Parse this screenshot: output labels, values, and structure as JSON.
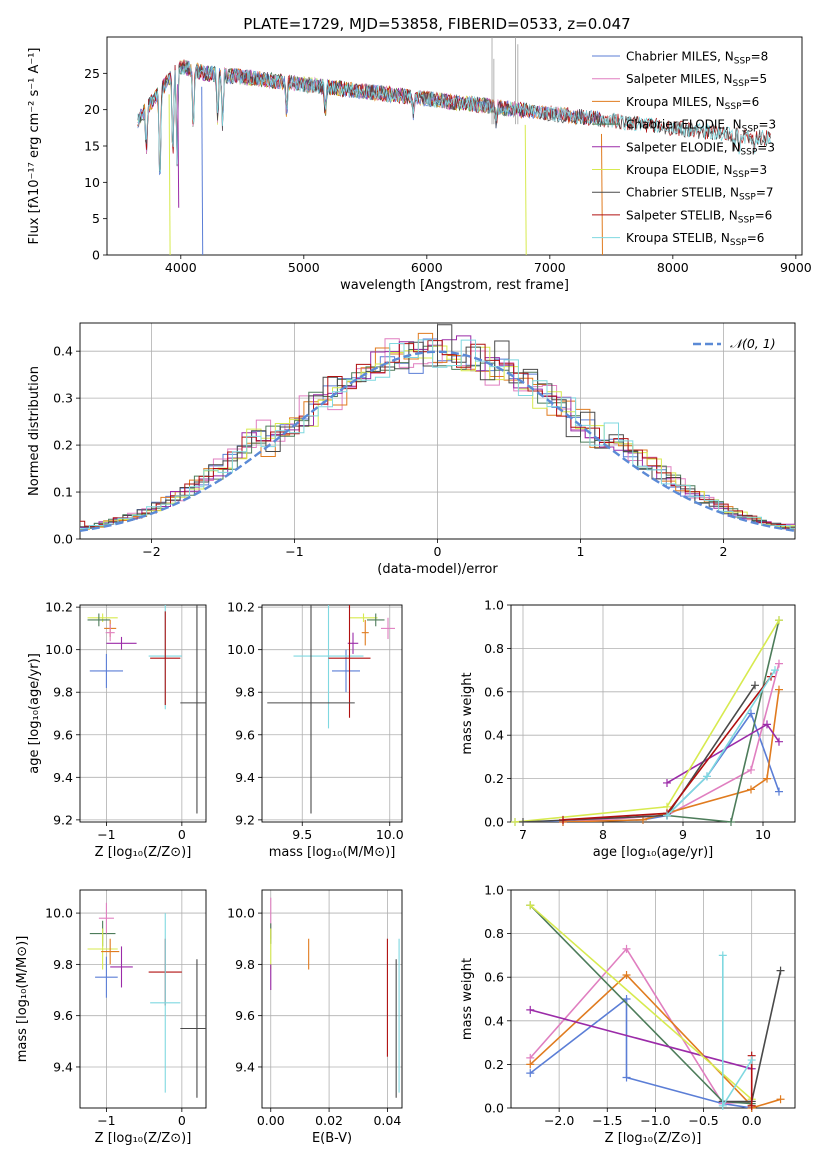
{
  "title": "PLATE=1729, MJD=53858, FIBERID=0533, z=0.047",
  "colors": {
    "Chabrier MILES": "#5b7ed6",
    "Salpeter MILES": "#e07fc0",
    "Kroupa MILES": "#e07b1f",
    "Chabrier ELODIE": "#4d7c5a",
    "Salpeter ELODIE": "#9b2ba8",
    "Kroupa ELODIE": "#d7ea4f",
    "Chabrier STELIB": "#4a4a4a",
    "Salpeter STELIB": "#b01010",
    "Kroupa STELIB": "#7fd8e0",
    "gauss": "#5b8ad6"
  },
  "chart_data": [
    {
      "type": "line",
      "ylabel": "Flux [fλ10⁻¹⁷ erg cm⁻² s⁻¹ A⁻¹]",
      "xlabel": "wavelength [Angstrom, rest frame]",
      "xlim": [
        3400,
        9050
      ],
      "ylim": [
        0,
        30
      ],
      "xticks": [
        4000,
        5000,
        6000,
        7000,
        8000,
        9000
      ],
      "yticks": [
        0,
        5,
        10,
        15,
        20,
        25
      ],
      "grid": false,
      "legend_position": "top-right",
      "legend": [
        {
          "model": "Chabrier MILES",
          "label": "Chabrier MILES, N",
          "sub": "SSP",
          "val": "=8"
        },
        {
          "model": "Salpeter MILES",
          "label": "Salpeter MILES, N",
          "sub": "SSP",
          "val": "=5"
        },
        {
          "model": "Kroupa MILES",
          "label": "Kroupa MILES, N",
          "sub": "SSP",
          "val": "=6"
        },
        {
          "model": "Chabrier ELODIE",
          "label": "Chabrier ELODIE, N",
          "sub": "SSP",
          "val": "=3"
        },
        {
          "model": "Salpeter ELODIE",
          "label": "Salpeter ELODIE, N",
          "sub": "SSP",
          "val": "=3"
        },
        {
          "model": "Kroupa ELODIE",
          "label": "Kroupa ELODIE, N",
          "sub": "SSP",
          "val": "=3"
        },
        {
          "model": "Chabrier STELIB",
          "label": "Chabrier STELIB, N",
          "sub": "SSP",
          "val": "=7"
        },
        {
          "model": "Salpeter STELIB",
          "label": "Salpeter STELIB, N",
          "sub": "SSP",
          "val": "=6"
        },
        {
          "model": "Kroupa STELIB",
          "label": "Kroupa STELIB, N",
          "sub": "SSP",
          "val": "=6"
        }
      ],
      "continuum": {
        "x": [
          3650,
          3800,
          4000,
          4200,
          4500,
          5000,
          5500,
          6000,
          6500,
          7000,
          7500,
          8000,
          8500,
          8800
        ],
        "y": [
          18.5,
          22,
          26,
          25,
          24.5,
          23.5,
          22.5,
          21.5,
          20.5,
          19.5,
          18.5,
          17.5,
          16.5,
          16
        ]
      },
      "absorption": [
        [
          3720,
          14
        ],
        [
          3830,
          8
        ],
        [
          3935,
          12
        ],
        [
          3970,
          13
        ],
        [
          4102,
          16
        ],
        [
          4300,
          18
        ],
        [
          4340,
          17
        ],
        [
          4861,
          19
        ],
        [
          5175,
          19
        ],
        [
          5890,
          19.5
        ],
        [
          6563,
          18
        ],
        [
          8500,
          15
        ],
        [
          8542,
          14
        ],
        [
          8662,
          13.5
        ]
      ],
      "dips": [
        {
          "model": "Kroupa ELODIE",
          "x": 3905,
          "to": 0
        },
        {
          "model": "Salpeter ELODIE",
          "x": 3975,
          "to": 6.5
        },
        {
          "model": "Chabrier MILES",
          "x": 4170,
          "to": 0
        },
        {
          "model": "Kroupa ELODIE",
          "x": 6800,
          "to": 0
        },
        {
          "model": "Kroupa MILES",
          "x": 7420,
          "to": 0
        }
      ],
      "spikes": [
        [
          6530,
          30
        ],
        [
          6545,
          27
        ],
        [
          6720,
          30
        ],
        [
          6740,
          29
        ]
      ]
    },
    {
      "type": "histogram",
      "ylabel": "Normed distribution",
      "xlabel": "(data-model)/error",
      "xlim": [
        -2.5,
        2.5
      ],
      "ylim": [
        0,
        0.46
      ],
      "xticks": [
        -2,
        -1,
        0,
        1,
        2
      ],
      "yticks": [
        0.0,
        0.1,
        0.2,
        0.3,
        0.4
      ],
      "grid": true,
      "legend_position": "top-right",
      "legend_label": "𝒩(0, 1)",
      "bin_width": 0.1
    },
    {
      "type": "scatter",
      "xlabel": "Z [log₁₀(Z/Z⊙)]",
      "ylabel": "age  [log₁₀(age/yr)]",
      "xlim": [
        -1.35,
        0.32
      ],
      "ylim": [
        9.19,
        10.21
      ],
      "xticks": [
        -1,
        0
      ],
      "yticks": [
        9.2,
        9.4,
        9.6,
        9.8,
        10.0,
        10.2
      ],
      "grid": true,
      "points": [
        {
          "model": "Kroupa ELODIE",
          "x": -1.05,
          "xerr": 0.2,
          "y": 10.15,
          "yerr": 0.02
        },
        {
          "model": "Chabrier ELODIE",
          "x": -1.1,
          "xerr": 0.15,
          "y": 10.14,
          "yerr": 0.03
        },
        {
          "model": "Kroupa MILES",
          "x": -0.95,
          "xerr": 0.08,
          "y": 10.1,
          "yerr": 0.04
        },
        {
          "model": "Salpeter MILES",
          "x": -0.95,
          "xerr": 0.06,
          "y": 10.08,
          "yerr": 0.04
        },
        {
          "model": "Salpeter ELODIE",
          "x": -0.8,
          "xerr": 0.2,
          "y": 10.03,
          "yerr": 0.03
        },
        {
          "model": "Chabrier MILES",
          "x": -1.0,
          "xerr": 0.22,
          "y": 9.9,
          "yerr": 0.08
        },
        {
          "model": "Kroupa STELIB",
          "x": -0.22,
          "xerr": 0.22,
          "y": 9.97,
          "yerr": 0.25
        },
        {
          "model": "Salpeter STELIB",
          "x": -0.22,
          "xerr": 0.2,
          "y": 9.96,
          "yerr": 0.22
        },
        {
          "model": "Chabrier STELIB",
          "x": 0.2,
          "xerr": 0.22,
          "y": 9.75,
          "yerr": 0.52
        }
      ]
    },
    {
      "type": "scatter",
      "xlabel": "mass [log₁₀(M/M⊙)]",
      "xlim": [
        9.27,
        10.07
      ],
      "ylim": [
        9.19,
        10.21
      ],
      "xticks": [
        9.5,
        10.0
      ],
      "yticks": [
        9.2,
        9.4,
        9.6,
        9.8,
        10.0,
        10.2
      ],
      "grid": true,
      "points": [
        {
          "model": "Kroupa ELODIE",
          "x": 9.85,
          "xerr": 0.08,
          "y": 10.15,
          "yerr": 0.02
        },
        {
          "model": "Chabrier ELODIE",
          "x": 9.92,
          "xerr": 0.05,
          "y": 10.14,
          "yerr": 0.03
        },
        {
          "model": "Salpeter MILES",
          "x": 9.99,
          "xerr": 0.04,
          "y": 10.1,
          "yerr": 0.05
        },
        {
          "model": "Kroupa MILES",
          "x": 9.86,
          "xerr": 0.02,
          "y": 10.08,
          "yerr": 0.06
        },
        {
          "model": "Salpeter ELODIE",
          "x": 9.79,
          "xerr": 0.03,
          "y": 10.03,
          "yerr": 0.05
        },
        {
          "model": "Chabrier MILES",
          "x": 9.75,
          "xerr": 0.08,
          "y": 9.9,
          "yerr": 0.1
        },
        {
          "model": "Kroupa STELIB",
          "x": 9.65,
          "xerr": 0.2,
          "y": 9.97,
          "yerr": 0.34
        },
        {
          "model": "Salpeter STELIB",
          "x": 9.77,
          "xerr": 0.12,
          "y": 9.96,
          "yerr": 0.28
        },
        {
          "model": "Chabrier STELIB",
          "x": 9.55,
          "xerr": 0.25,
          "y": 9.75,
          "yerr": 0.52
        }
      ]
    },
    {
      "type": "line",
      "xlabel": "age  [log₁₀(age/yr)]",
      "ylabel": "mass weight",
      "xlim": [
        6.85,
        10.4
      ],
      "ylim": [
        0,
        1
      ],
      "xticks": [
        7,
        8,
        9,
        10
      ],
      "yticks": [
        0.0,
        0.2,
        0.4,
        0.6,
        0.8,
        1.0
      ],
      "grid": true,
      "series": [
        {
          "model": "Chabrier MILES",
          "x": [
            6.9,
            7.5,
            8.5,
            8.8,
            9.3,
            9.85,
            10.2
          ],
          "y": [
            0.0,
            0.0,
            0.01,
            0.03,
            0.21,
            0.5,
            0.14
          ]
        },
        {
          "model": "Salpeter MILES",
          "x": [
            7.5,
            8.8,
            9.85,
            10.2
          ],
          "y": [
            0.0,
            0.03,
            0.24,
            0.73
          ]
        },
        {
          "model": "Kroupa MILES",
          "x": [
            7.5,
            8.5,
            9.85,
            10.05,
            10.2
          ],
          "y": [
            0.0,
            0.01,
            0.15,
            0.2,
            0.61
          ]
        },
        {
          "model": "Chabrier ELODIE",
          "x": [
            8.8,
            9.6,
            10.2
          ],
          "y": [
            0.03,
            0.0,
            0.93
          ]
        },
        {
          "model": "Salpeter ELODIE",
          "x": [
            8.8,
            10.05,
            10.2
          ],
          "y": [
            0.18,
            0.45,
            0.37
          ]
        },
        {
          "model": "Kroupa ELODIE",
          "x": [
            6.9,
            8.8,
            10.2
          ],
          "y": [
            0.0,
            0.07,
            0.93
          ]
        },
        {
          "model": "Chabrier STELIB",
          "x": [
            7.0,
            8.8,
            9.9
          ],
          "y": [
            0.0,
            0.03,
            0.63
          ]
        },
        {
          "model": "Salpeter STELIB",
          "x": [
            7.5,
            8.8,
            10.1
          ],
          "y": [
            0.01,
            0.04,
            0.67
          ]
        },
        {
          "model": "Kroupa STELIB",
          "x": [
            8.8,
            9.3,
            10.15
          ],
          "y": [
            0.03,
            0.21,
            0.7
          ]
        }
      ]
    },
    {
      "type": "scatter",
      "xlabel": "Z [log₁₀(Z/Z⊙)]",
      "ylabel": "mass [log₁₀(M/M⊙)]",
      "xlim": [
        -1.35,
        0.32
      ],
      "ylim": [
        9.24,
        10.09
      ],
      "xticks": [
        -1,
        0
      ],
      "yticks": [
        9.4,
        9.6,
        9.8,
        10.0
      ],
      "grid": true,
      "points": [
        {
          "model": "Chabrier ELODIE",
          "x": -1.05,
          "xerr": 0.17,
          "y": 9.92,
          "yerr": 0.05
        },
        {
          "model": "Salpeter MILES",
          "x": -1.0,
          "xerr": 0.1,
          "y": 9.98,
          "yerr": 0.06
        },
        {
          "model": "Kroupa ELODIE",
          "x": -1.05,
          "xerr": 0.2,
          "y": 9.86,
          "yerr": 0.08
        },
        {
          "model": "Kroupa MILES",
          "x": -0.95,
          "xerr": 0.12,
          "y": 9.85,
          "yerr": 0.05
        },
        {
          "model": "Salpeter ELODIE",
          "x": -0.8,
          "xerr": 0.15,
          "y": 9.79,
          "yerr": 0.08
        },
        {
          "model": "Chabrier MILES",
          "x": -1.0,
          "xerr": 0.15,
          "y": 9.75,
          "yerr": 0.08
        },
        {
          "model": "Salpeter STELIB",
          "x": -0.22,
          "xerr": 0.22,
          "y": 9.77,
          "yerr": 0.13
        },
        {
          "model": "Kroupa STELIB",
          "x": -0.22,
          "xerr": 0.2,
          "y": 9.65,
          "yerr": 0.35
        },
        {
          "model": "Chabrier STELIB",
          "x": 0.2,
          "xerr": 0.22,
          "y": 9.55,
          "yerr": 0.27
        }
      ]
    },
    {
      "type": "scatter",
      "xlabel": "E(B-V)",
      "xlim": [
        -0.003,
        0.045
      ],
      "ylim": [
        9.24,
        10.09
      ],
      "xticks": [
        0.0,
        0.02,
        0.04
      ],
      "yticks": [
        9.4,
        9.6,
        9.8,
        10.0
      ],
      "grid": true,
      "points": [
        {
          "model": "Salpeter MILES",
          "x": 0.0,
          "y": 9.98,
          "yerr": 0.08
        },
        {
          "model": "Chabrier ELODIE",
          "x": 0.0,
          "y": 9.92,
          "yerr": 0.04
        },
        {
          "model": "Kroupa ELODIE",
          "x": 0.0,
          "y": 9.86,
          "yerr": 0.08
        },
        {
          "model": "Salpeter ELODIE",
          "x": 0.0,
          "y": 9.75,
          "yerr": 0.05
        },
        {
          "model": "Kroupa MILES",
          "x": 0.013,
          "y": 9.84,
          "yerr": 0.06
        },
        {
          "model": "Salpeter STELIB",
          "x": 0.04,
          "y": 9.67,
          "yerr": 0.23
        },
        {
          "model": "Chabrier STELIB",
          "x": 0.043,
          "y": 9.55,
          "yerr": 0.27
        },
        {
          "model": "Kroupa STELIB",
          "x": 0.044,
          "y": 9.6,
          "yerr": 0.3
        }
      ]
    },
    {
      "type": "line",
      "xlabel": "Z [log₁₀(Z/Z⊙)]",
      "ylabel": "mass weight",
      "xlim": [
        -2.5,
        0.45
      ],
      "ylim": [
        0,
        1
      ],
      "xticks": [
        -2.0,
        -1.5,
        -1.0,
        -0.5,
        0.0
      ],
      "yticks": [
        0.0,
        0.2,
        0.4,
        0.6,
        0.8,
        1.0
      ],
      "grid": true,
      "series": [
        {
          "model": "Chabrier MILES",
          "x": [
            -2.3,
            -1.3,
            -1.3,
            -0.3,
            0.0
          ],
          "y": [
            0.16,
            0.5,
            0.14,
            0.02,
            0.0
          ]
        },
        {
          "model": "Salpeter MILES",
          "x": [
            -2.3,
            -1.3,
            -0.3,
            0.0
          ],
          "y": [
            0.23,
            0.73,
            0.02,
            0.03
          ]
        },
        {
          "model": "Kroupa MILES",
          "x": [
            -2.3,
            -1.3,
            0.0,
            0.0,
            0.3
          ],
          "y": [
            0.2,
            0.61,
            0.01,
            0.0,
            0.04
          ]
        },
        {
          "model": "Chabrier ELODIE",
          "x": [
            -2.3,
            -0.3,
            0.0
          ],
          "y": [
            0.93,
            0.03,
            0.02
          ]
        },
        {
          "model": "Salpeter ELODIE",
          "x": [
            -2.3,
            0.0
          ],
          "y": [
            0.45,
            0.18
          ]
        },
        {
          "model": "Kroupa ELODIE",
          "x": [
            -2.3,
            0.0
          ],
          "y": [
            0.93,
            0.04
          ]
        },
        {
          "model": "Chabrier STELIB",
          "x": [
            -0.3,
            0.0,
            0.3
          ],
          "y": [
            0.03,
            0.03,
            0.63
          ]
        },
        {
          "model": "Salpeter STELIB",
          "x": [
            0.0,
            0.0
          ],
          "y": [
            0.24,
            0.01
          ]
        },
        {
          "model": "Kroupa STELIB",
          "x": [
            -0.3,
            -0.3,
            0.0
          ],
          "y": [
            0.7,
            0.01,
            0.22
          ]
        }
      ]
    }
  ]
}
